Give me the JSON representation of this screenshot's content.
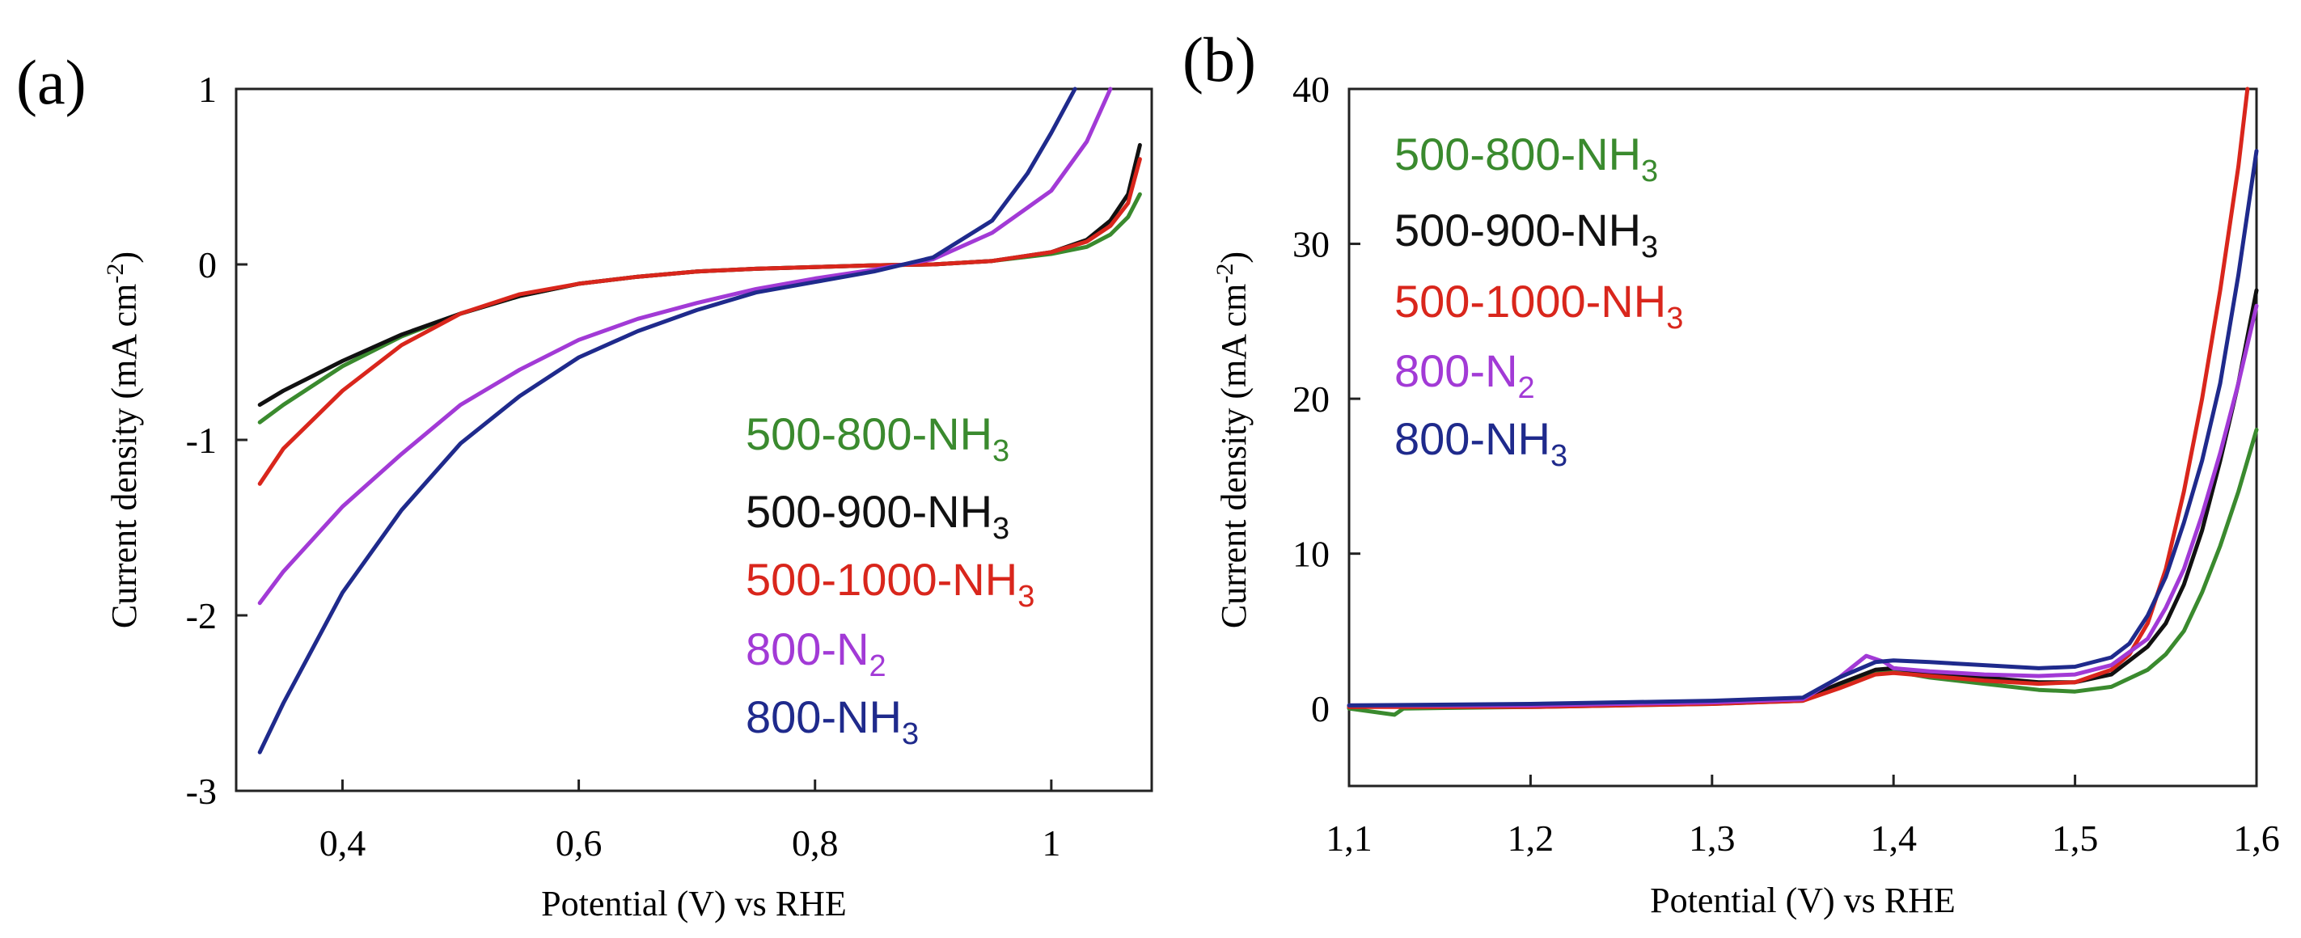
{
  "chart_data": [
    {
      "panel_label": "(a)",
      "type": "line",
      "xlabel": "Potential (V) vs RHE",
      "ylabel": "Current density (mA cm",
      "ylabel_sup": "-2",
      "ylabel_end": ")",
      "xlim": [
        0.31,
        1.085
      ],
      "ylim": [
        -3,
        1
      ],
      "xticks": [
        0.4,
        0.6,
        0.8,
        1.0
      ],
      "xtick_labels": [
        "0,4",
        "0,6",
        "0,8",
        "1"
      ],
      "yticks": [
        1,
        0,
        -1,
        -2,
        -3
      ],
      "ytick_labels": [
        "1",
        "0",
        "-1",
        "-2",
        "-3"
      ],
      "legend_position": "bottom-right",
      "series": [
        {
          "name": "500-800-NH",
          "sub": "3",
          "color": "#3a8a2e",
          "x": [
            0.33,
            0.35,
            0.4,
            0.45,
            0.5,
            0.55,
            0.6,
            0.65,
            0.7,
            0.75,
            0.8,
            0.85,
            0.9,
            0.95,
            1.0,
            1.03,
            1.05,
            1.065,
            1.075
          ],
          "y": [
            -0.9,
            -0.8,
            -0.58,
            -0.41,
            -0.28,
            -0.18,
            -0.11,
            -0.07,
            -0.04,
            -0.025,
            -0.015,
            -0.005,
            0.0,
            0.02,
            0.06,
            0.1,
            0.17,
            0.27,
            0.4
          ]
        },
        {
          "name": "500-900-NH",
          "sub": "3",
          "color": "#111111",
          "x": [
            0.33,
            0.35,
            0.4,
            0.45,
            0.5,
            0.55,
            0.6,
            0.65,
            0.7,
            0.75,
            0.8,
            0.85,
            0.9,
            0.95,
            1.0,
            1.03,
            1.05,
            1.065,
            1.075
          ],
          "y": [
            -0.8,
            -0.72,
            -0.55,
            -0.4,
            -0.28,
            -0.18,
            -0.11,
            -0.07,
            -0.04,
            -0.025,
            -0.015,
            -0.005,
            0.0,
            0.02,
            0.07,
            0.14,
            0.25,
            0.4,
            0.68
          ]
        },
        {
          "name": "500-1000-NH",
          "sub": "3",
          "color": "#d9261c",
          "x": [
            0.33,
            0.35,
            0.4,
            0.45,
            0.5,
            0.55,
            0.6,
            0.65,
            0.7,
            0.75,
            0.8,
            0.85,
            0.9,
            0.95,
            1.0,
            1.03,
            1.05,
            1.065,
            1.075
          ],
          "y": [
            -1.25,
            -1.05,
            -0.72,
            -0.46,
            -0.28,
            -0.17,
            -0.11,
            -0.07,
            -0.04,
            -0.025,
            -0.015,
            -0.005,
            0.0,
            0.02,
            0.07,
            0.13,
            0.22,
            0.35,
            0.6
          ]
        },
        {
          "name": "800-N",
          "sub": "2",
          "color": "#a23ad6",
          "x": [
            0.33,
            0.35,
            0.4,
            0.45,
            0.5,
            0.55,
            0.6,
            0.65,
            0.7,
            0.75,
            0.8,
            0.85,
            0.9,
            0.95,
            1.0,
            1.03,
            1.05
          ],
          "y": [
            -1.93,
            -1.75,
            -1.38,
            -1.08,
            -0.8,
            -0.6,
            -0.43,
            -0.31,
            -0.22,
            -0.14,
            -0.08,
            -0.03,
            0.03,
            0.18,
            0.42,
            0.7,
            1.0
          ]
        },
        {
          "name": "800-NH",
          "sub": "3",
          "color": "#1f2a8c",
          "x": [
            0.33,
            0.35,
            0.4,
            0.45,
            0.5,
            0.55,
            0.6,
            0.65,
            0.7,
            0.75,
            0.8,
            0.85,
            0.9,
            0.95,
            0.98,
            1.0,
            1.02
          ],
          "y": [
            -2.78,
            -2.5,
            -1.87,
            -1.4,
            -1.02,
            -0.75,
            -0.53,
            -0.38,
            -0.26,
            -0.16,
            -0.1,
            -0.04,
            0.04,
            0.25,
            0.52,
            0.75,
            1.0
          ]
        }
      ]
    },
    {
      "panel_label": "(b)",
      "type": "line",
      "xlabel": "Potential (V) vs RHE",
      "ylabel": "Current density (mA cm",
      "ylabel_sup": "-2",
      "ylabel_end": ")",
      "xlim": [
        1.1,
        1.6
      ],
      "ylim": [
        -5,
        40
      ],
      "xticks": [
        1.1,
        1.2,
        1.3,
        1.4,
        1.5,
        1.6
      ],
      "xtick_labels": [
        "1,1",
        "1,2",
        "1,3",
        "1,4",
        "1,5",
        "1,6"
      ],
      "yticks": [
        40,
        30,
        20,
        10,
        0
      ],
      "ytick_labels": [
        "40",
        "30",
        "20",
        "10",
        "0"
      ],
      "legend_position": "top-left",
      "series": [
        {
          "name": "500-800-NH",
          "sub": "3",
          "color": "#3a8a2e",
          "x": [
            1.1,
            1.125,
            1.13,
            1.2,
            1.3,
            1.35,
            1.37,
            1.39,
            1.4,
            1.42,
            1.45,
            1.48,
            1.5,
            1.52,
            1.54,
            1.55,
            1.56,
            1.57,
            1.58,
            1.59,
            1.6
          ],
          "y": [
            0.0,
            -0.4,
            0.0,
            0.1,
            0.3,
            0.5,
            1.5,
            2.4,
            2.4,
            2.0,
            1.6,
            1.2,
            1.1,
            1.4,
            2.5,
            3.5,
            5,
            7.5,
            10.5,
            14,
            18
          ]
        },
        {
          "name": "500-900-NH",
          "sub": "3",
          "color": "#111111",
          "x": [
            1.1,
            1.2,
            1.3,
            1.35,
            1.37,
            1.39,
            1.4,
            1.42,
            1.45,
            1.48,
            1.5,
            1.52,
            1.54,
            1.55,
            1.56,
            1.57,
            1.58,
            1.59,
            1.6
          ],
          "y": [
            0.1,
            0.2,
            0.4,
            0.6,
            1.6,
            2.5,
            2.6,
            2.3,
            2.0,
            1.7,
            1.7,
            2.2,
            4,
            5.5,
            8,
            11.5,
            16,
            21,
            27
          ]
        },
        {
          "name": "500-1000-NH",
          "sub": "3",
          "color": "#d9261c",
          "x": [
            1.1,
            1.2,
            1.3,
            1.35,
            1.37,
            1.39,
            1.4,
            1.42,
            1.45,
            1.48,
            1.5,
            1.52,
            1.53,
            1.54,
            1.55,
            1.56,
            1.57,
            1.58,
            1.59,
            1.595
          ],
          "y": [
            0.1,
            0.1,
            0.3,
            0.5,
            1.3,
            2.2,
            2.3,
            2.1,
            1.8,
            1.6,
            1.7,
            2.5,
            3.5,
            5.5,
            9,
            14,
            20,
            27,
            35,
            40
          ]
        },
        {
          "name": "800-N",
          "sub": "2",
          "color": "#a23ad6",
          "x": [
            1.1,
            1.2,
            1.3,
            1.35,
            1.37,
            1.385,
            1.395,
            1.4,
            1.42,
            1.45,
            1.48,
            1.5,
            1.52,
            1.54,
            1.55,
            1.56,
            1.57,
            1.58,
            1.59,
            1.6
          ],
          "y": [
            0.2,
            0.2,
            0.4,
            0.6,
            2.0,
            3.4,
            3.0,
            2.6,
            2.4,
            2.2,
            2.1,
            2.2,
            2.8,
            4.5,
            6.5,
            9,
            12.5,
            16.5,
            21,
            26
          ]
        },
        {
          "name": "800-NH",
          "sub": "3",
          "color": "#1f2a8c",
          "x": [
            1.1,
            1.2,
            1.3,
            1.35,
            1.37,
            1.39,
            1.4,
            1.42,
            1.45,
            1.48,
            1.5,
            1.52,
            1.53,
            1.54,
            1.55,
            1.56,
            1.57,
            1.58,
            1.59,
            1.6
          ],
          "y": [
            0.2,
            0.3,
            0.5,
            0.7,
            2.0,
            3.0,
            3.1,
            3.0,
            2.8,
            2.6,
            2.7,
            3.3,
            4.2,
            6,
            8.5,
            12,
            16,
            21,
            28,
            36
          ]
        }
      ]
    }
  ]
}
